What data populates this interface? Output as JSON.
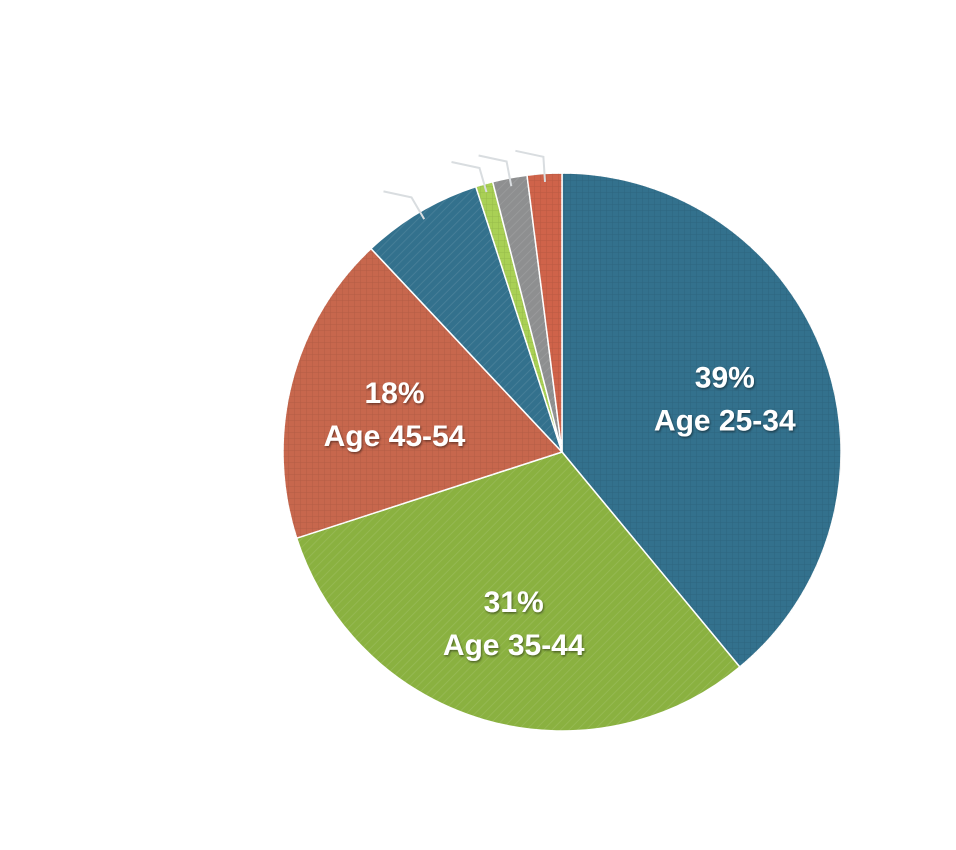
{
  "chart_data": {
    "type": "pie",
    "title": "",
    "start_angle_deg": 0,
    "direction": "clockwise",
    "slices": [
      {
        "label": "Age 25-34",
        "value": 39,
        "percent_label": "39%",
        "category_label": "Age 25-34",
        "color": "#33718d",
        "labeled": true
      },
      {
        "label": "Age 35-44",
        "value": 31,
        "percent_label": "31%",
        "category_label": "Age 35-44",
        "color": "#8ab140",
        "labeled": true
      },
      {
        "label": "Age 45-54",
        "value": 18,
        "percent_label": "18%",
        "category_label": "Age 45-54",
        "color": "#c7674d",
        "labeled": true
      },
      {
        "label": "",
        "value": 7,
        "color": "#33718d",
        "labeled": false
      },
      {
        "label": "",
        "value": 1,
        "color": "#a9d055",
        "labeled": false
      },
      {
        "label": "",
        "value": 2,
        "color": "#8e8f90",
        "labeled": false
      },
      {
        "label": "",
        "value": 2,
        "color": "#cf634a",
        "labeled": false
      }
    ],
    "legend": "none"
  }
}
